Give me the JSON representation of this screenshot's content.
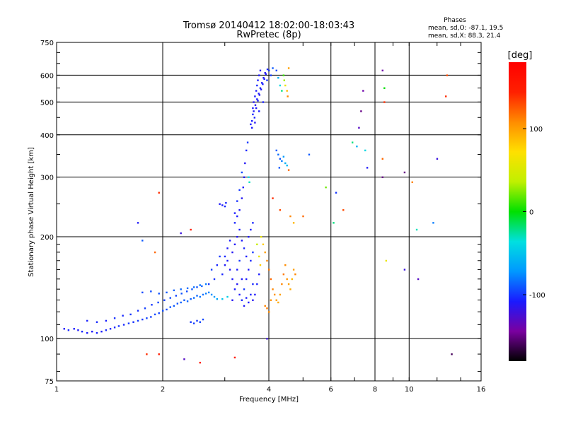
{
  "title_line1": "Tromsø 20140412 18:02:00-18:03:43",
  "title_line2": "RwPretec (8p)",
  "phases": {
    "heading": "Phases",
    "line_o": "mean, sd,O: -87.1, 19.5",
    "line_x": "mean, sd,X:  88.3, 21.4"
  },
  "colorbar": {
    "unit_label": "[deg]",
    "tick_labels": [
      "100",
      "0",
      "-100"
    ],
    "colors": [
      "#000000",
      "#7a00a0",
      "#1a1aff",
      "#0098ff",
      "#00e0e0",
      "#00e000",
      "#c0f000",
      "#ffe000",
      "#ff8c00",
      "#ff2000",
      "#ff0000"
    ]
  },
  "chart_data": {
    "type": "scatter",
    "title": "Tromsø 20140412 18:02:00-18:03:43",
    "subtitle": "RwPretec (8p)",
    "xlabel": "Frequency [MHz]",
    "ylabel": "Stationary phase Virtual Height [km]",
    "xscale": "log",
    "yscale": "log",
    "xlim": [
      1,
      16
    ],
    "ylim": [
      75,
      750
    ],
    "x_ticks": [
      "1",
      "2",
      "4",
      "6",
      "8",
      "10",
      "16"
    ],
    "y_ticks": [
      "75",
      "100",
      "200",
      "300",
      "400",
      "500",
      "600",
      "750"
    ],
    "grid": true,
    "colorbar_range": [
      -180,
      180
    ],
    "points": [
      [
        1.05,
        107,
        -110
      ],
      [
        1.08,
        106,
        -105
      ],
      [
        1.12,
        107,
        -108
      ],
      [
        1.15,
        106,
        -110
      ],
      [
        1.18,
        105,
        -105
      ],
      [
        1.22,
        104,
        -108
      ],
      [
        1.26,
        105,
        -110
      ],
      [
        1.3,
        104,
        -106
      ],
      [
        1.34,
        105,
        -108
      ],
      [
        1.38,
        106,
        -104
      ],
      [
        1.42,
        107,
        -106
      ],
      [
        1.46,
        108,
        -105
      ],
      [
        1.5,
        109,
        -102
      ],
      [
        1.55,
        110,
        -104
      ],
      [
        1.6,
        111,
        -100
      ],
      [
        1.65,
        112,
        -102
      ],
      [
        1.7,
        113,
        -98
      ],
      [
        1.75,
        114,
        -100
      ],
      [
        1.8,
        115,
        -96
      ],
      [
        1.85,
        116,
        -98
      ],
      [
        1.9,
        118,
        -95
      ],
      [
        1.95,
        119,
        -97
      ],
      [
        2.0,
        121,
        -93
      ],
      [
        2.05,
        122,
        -95
      ],
      [
        2.1,
        124,
        -92
      ],
      [
        2.15,
        125,
        -90
      ],
      [
        2.2,
        127,
        -92
      ],
      [
        2.25,
        128,
        -88
      ],
      [
        2.3,
        130,
        -90
      ],
      [
        2.35,
        129,
        -86
      ],
      [
        2.4,
        131,
        -88
      ],
      [
        2.45,
        132,
        -85
      ],
      [
        2.5,
        134,
        -86
      ],
      [
        2.55,
        133,
        -82
      ],
      [
        2.6,
        135,
        -84
      ],
      [
        2.65,
        136,
        -80
      ],
      [
        2.7,
        137,
        -78
      ],
      [
        2.75,
        135,
        -75
      ],
      [
        2.8,
        133,
        -70
      ],
      [
        2.85,
        131,
        -65
      ],
      [
        1.22,
        113,
        -106
      ],
      [
        1.3,
        112,
        -104
      ],
      [
        1.38,
        113,
        -106
      ],
      [
        1.46,
        115,
        -102
      ],
      [
        1.54,
        117,
        -104
      ],
      [
        1.62,
        118,
        -100
      ],
      [
        1.7,
        121,
        -102
      ],
      [
        1.78,
        123,
        -98
      ],
      [
        1.86,
        126,
        -100
      ],
      [
        1.94,
        128,
        -96
      ],
      [
        2.02,
        130,
        -98
      ],
      [
        2.1,
        132,
        -94
      ],
      [
        2.18,
        134,
        -96
      ],
      [
        2.26,
        136,
        -92
      ],
      [
        2.34,
        138,
        -94
      ],
      [
        2.42,
        140,
        -90
      ],
      [
        2.5,
        142,
        -92
      ],
      [
        2.58,
        143,
        -88
      ],
      [
        1.75,
        137,
        -95
      ],
      [
        1.85,
        138,
        -94
      ],
      [
        1.95,
        136,
        -92
      ],
      [
        2.05,
        137,
        -90
      ],
      [
        2.15,
        139,
        -88
      ],
      [
        2.25,
        140,
        -86
      ],
      [
        2.35,
        141,
        -85
      ],
      [
        2.45,
        142,
        -84
      ],
      [
        2.55,
        144,
        -82
      ],
      [
        2.65,
        145,
        -80
      ],
      [
        2.95,
        131,
        -50
      ],
      [
        3.05,
        133,
        -45
      ],
      [
        2.4,
        112,
        -100
      ],
      [
        2.45,
        111,
        -98
      ],
      [
        2.5,
        113,
        -100
      ],
      [
        2.55,
        112,
        -96
      ],
      [
        2.6,
        114,
        -95
      ],
      [
        2.9,
        250,
        -110
      ],
      [
        2.95,
        248,
        -108
      ],
      [
        3.0,
        246,
        -105
      ],
      [
        3.02,
        252,
        -106
      ],
      [
        3.2,
        220,
        -105
      ],
      [
        3.25,
        230,
        -108
      ],
      [
        3.3,
        240,
        -110
      ],
      [
        3.35,
        260,
        -112
      ],
      [
        3.38,
        280,
        -108
      ],
      [
        3.4,
        300,
        -110
      ],
      [
        3.42,
        330,
        -112
      ],
      [
        3.45,
        360,
        -105
      ],
      [
        3.48,
        380,
        -100
      ],
      [
        3.35,
        310,
        -95
      ],
      [
        3.3,
        275,
        -100
      ],
      [
        3.25,
        255,
        -102
      ],
      [
        3.2,
        235,
        -108
      ],
      [
        3.5,
        300,
        -40
      ],
      [
        3.52,
        290,
        -30
      ],
      [
        3.15,
        150,
        -110
      ],
      [
        3.1,
        160,
        -112
      ],
      [
        3.05,
        170,
        -108
      ],
      [
        3.0,
        165,
        -110
      ],
      [
        2.95,
        155,
        -105
      ],
      [
        3.2,
        140,
        -108
      ],
      [
        3.25,
        145,
        -112
      ],
      [
        3.3,
        135,
        -110
      ],
      [
        3.35,
        130,
        -105
      ],
      [
        3.4,
        140,
        -100
      ],
      [
        3.45,
        150,
        -108
      ],
      [
        3.5,
        160,
        -110
      ],
      [
        3.55,
        170,
        -105
      ],
      [
        3.6,
        180,
        -100
      ],
      [
        3.2,
        190,
        -110
      ],
      [
        3.25,
        200,
        -112
      ],
      [
        3.3,
        210,
        -108
      ],
      [
        3.35,
        195,
        -110
      ],
      [
        3.4,
        185,
        -105
      ],
      [
        3.45,
        175,
        -108
      ],
      [
        3.5,
        200,
        -110
      ],
      [
        3.55,
        210,
        -108
      ],
      [
        3.6,
        220,
        -105
      ],
      [
        3.3,
        170,
        -100
      ],
      [
        3.15,
        180,
        -112
      ],
      [
        3.1,
        195,
        -108
      ],
      [
        3.05,
        185,
        -110
      ],
      [
        3.0,
        175,
        -105
      ],
      [
        3.4,
        125,
        -110
      ],
      [
        3.5,
        128,
        -108
      ],
      [
        3.6,
        130,
        -112
      ],
      [
        3.65,
        135,
        -110
      ],
      [
        3.7,
        145,
        -106
      ],
      [
        3.75,
        155,
        -108
      ],
      [
        3.6,
        145,
        -104
      ],
      [
        3.55,
        135,
        -106
      ],
      [
        3.45,
        132,
        -108
      ],
      [
        3.35,
        150,
        -110
      ],
      [
        3.25,
        160,
        -108
      ],
      [
        3.15,
        130,
        -112
      ],
      [
        2.85,
        165,
        -105
      ],
      [
        2.9,
        175,
        -100
      ],
      [
        2.8,
        150,
        -102
      ],
      [
        2.75,
        160,
        -98
      ],
      [
        2.7,
        145,
        -100
      ],
      [
        3.6,
        480,
        -110
      ],
      [
        3.62,
        500,
        -112
      ],
      [
        3.65,
        520,
        -108
      ],
      [
        3.68,
        540,
        -110
      ],
      [
        3.7,
        560,
        -105
      ],
      [
        3.72,
        580,
        -108
      ],
      [
        3.75,
        600,
        -110
      ],
      [
        3.78,
        620,
        -112
      ],
      [
        3.6,
        460,
        -105
      ],
      [
        3.58,
        440,
        -108
      ],
      [
        3.62,
        470,
        -110
      ],
      [
        3.66,
        490,
        -112
      ],
      [
        3.7,
        510,
        -108
      ],
      [
        3.74,
        530,
        -110
      ],
      [
        3.78,
        550,
        -105
      ],
      [
        3.82,
        570,
        -108
      ],
      [
        3.86,
        590,
        -110
      ],
      [
        3.9,
        610,
        -112
      ],
      [
        3.64,
        450,
        -106
      ],
      [
        3.68,
        480,
        -110
      ],
      [
        3.72,
        505,
        -108
      ],
      [
        3.76,
        525,
        -112
      ],
      [
        3.8,
        545,
        -110
      ],
      [
        3.84,
        565,
        -106
      ],
      [
        3.88,
        585,
        -108
      ],
      [
        3.92,
        605,
        -110
      ],
      [
        3.96,
        625,
        -105
      ],
      [
        4.0,
        620,
        -100
      ],
      [
        4.05,
        600,
        -98
      ],
      [
        3.95,
        580,
        -102
      ],
      [
        3.55,
        430,
        -108
      ],
      [
        3.58,
        420,
        -110
      ],
      [
        3.65,
        435,
        -112
      ],
      [
        3.75,
        470,
        -108
      ],
      [
        3.85,
        500,
        -106
      ],
      [
        4.1,
        630,
        -90
      ],
      [
        4.2,
        620,
        -95
      ],
      [
        4.25,
        590,
        -60
      ],
      [
        4.3,
        560,
        -40
      ],
      [
        4.35,
        540,
        -20
      ],
      [
        4.4,
        600,
        10
      ],
      [
        4.42,
        580,
        30
      ],
      [
        4.45,
        560,
        60
      ],
      [
        4.5,
        540,
        90
      ],
      [
        4.52,
        520,
        110
      ],
      [
        4.55,
        630,
        100
      ],
      [
        4.2,
        360,
        -90
      ],
      [
        4.25,
        350,
        -85
      ],
      [
        4.3,
        340,
        -90
      ],
      [
        4.35,
        335,
        -80
      ],
      [
        4.4,
        345,
        -70
      ],
      [
        4.45,
        330,
        -60
      ],
      [
        4.5,
        325,
        -55
      ],
      [
        4.28,
        320,
        -90
      ],
      [
        4.55,
        315,
        120
      ],
      [
        5.2,
        350,
        -90
      ],
      [
        3.8,
        200,
        60
      ],
      [
        3.85,
        190,
        80
      ],
      [
        3.9,
        180,
        100
      ],
      [
        3.95,
        170,
        110
      ],
      [
        4.0,
        160,
        115
      ],
      [
        4.05,
        150,
        120
      ],
      [
        4.1,
        140,
        110
      ],
      [
        4.15,
        135,
        105
      ],
      [
        4.2,
        130,
        100
      ],
      [
        4.25,
        128,
        95
      ],
      [
        4.3,
        135,
        100
      ],
      [
        4.35,
        145,
        110
      ],
      [
        4.4,
        155,
        115
      ],
      [
        4.45,
        165,
        108
      ],
      [
        4.5,
        150,
        105
      ],
      [
        4.55,
        145,
        100
      ],
      [
        4.6,
        140,
        95
      ],
      [
        4.65,
        150,
        90
      ],
      [
        4.7,
        160,
        100
      ],
      [
        4.75,
        155,
        110
      ],
      [
        3.9,
        125,
        110
      ],
      [
        3.95,
        123,
        115
      ],
      [
        4.0,
        120,
        108
      ],
      [
        4.05,
        130,
        104
      ],
      [
        3.75,
        175,
        60
      ],
      [
        3.7,
        190,
        40
      ],
      [
        3.78,
        165,
        80
      ],
      [
        4.6,
        230,
        110
      ],
      [
        4.7,
        220,
        90
      ],
      [
        5.0,
        230,
        120
      ],
      [
        4.1,
        260,
        140
      ],
      [
        4.3,
        240,
        130
      ],
      [
        5.8,
        280,
        20
      ],
      [
        6.2,
        270,
        -100
      ],
      [
        6.5,
        240,
        130
      ],
      [
        6.1,
        220,
        -20
      ],
      [
        6.9,
        380,
        -20
      ],
      [
        7.1,
        370,
        -60
      ],
      [
        7.5,
        360,
        -40
      ],
      [
        7.6,
        320,
        -110
      ],
      [
        7.2,
        420,
        -130
      ],
      [
        7.3,
        470,
        -150
      ],
      [
        7.4,
        540,
        -140
      ],
      [
        8.4,
        620,
        -140
      ],
      [
        8.5,
        550,
        0
      ],
      [
        8.5,
        500,
        140
      ],
      [
        8.4,
        340,
        120
      ],
      [
        8.4,
        300,
        -150
      ],
      [
        8.6,
        170,
        60
      ],
      [
        9.7,
        310,
        -150
      ],
      [
        9.7,
        160,
        -120
      ],
      [
        10.2,
        290,
        110
      ],
      [
        10.5,
        210,
        -30
      ],
      [
        10.6,
        150,
        -130
      ],
      [
        12.8,
        600,
        130
      ],
      [
        12.7,
        520,
        140
      ],
      [
        12.0,
        340,
        -120
      ],
      [
        11.7,
        220,
        -80
      ],
      [
        13.2,
        90,
        -160
      ],
      [
        1.7,
        220,
        -110
      ],
      [
        1.75,
        195,
        -90
      ],
      [
        1.9,
        180,
        120
      ],
      [
        1.95,
        270,
        140
      ],
      [
        2.25,
        205,
        -120
      ],
      [
        2.4,
        210,
        150
      ],
      [
        1.8,
        90,
        140
      ],
      [
        1.95,
        90,
        150
      ],
      [
        2.3,
        87,
        -130
      ],
      [
        2.55,
        85,
        150
      ],
      [
        3.2,
        88,
        150
      ],
      [
        3.95,
        100,
        -120
      ]
    ]
  }
}
